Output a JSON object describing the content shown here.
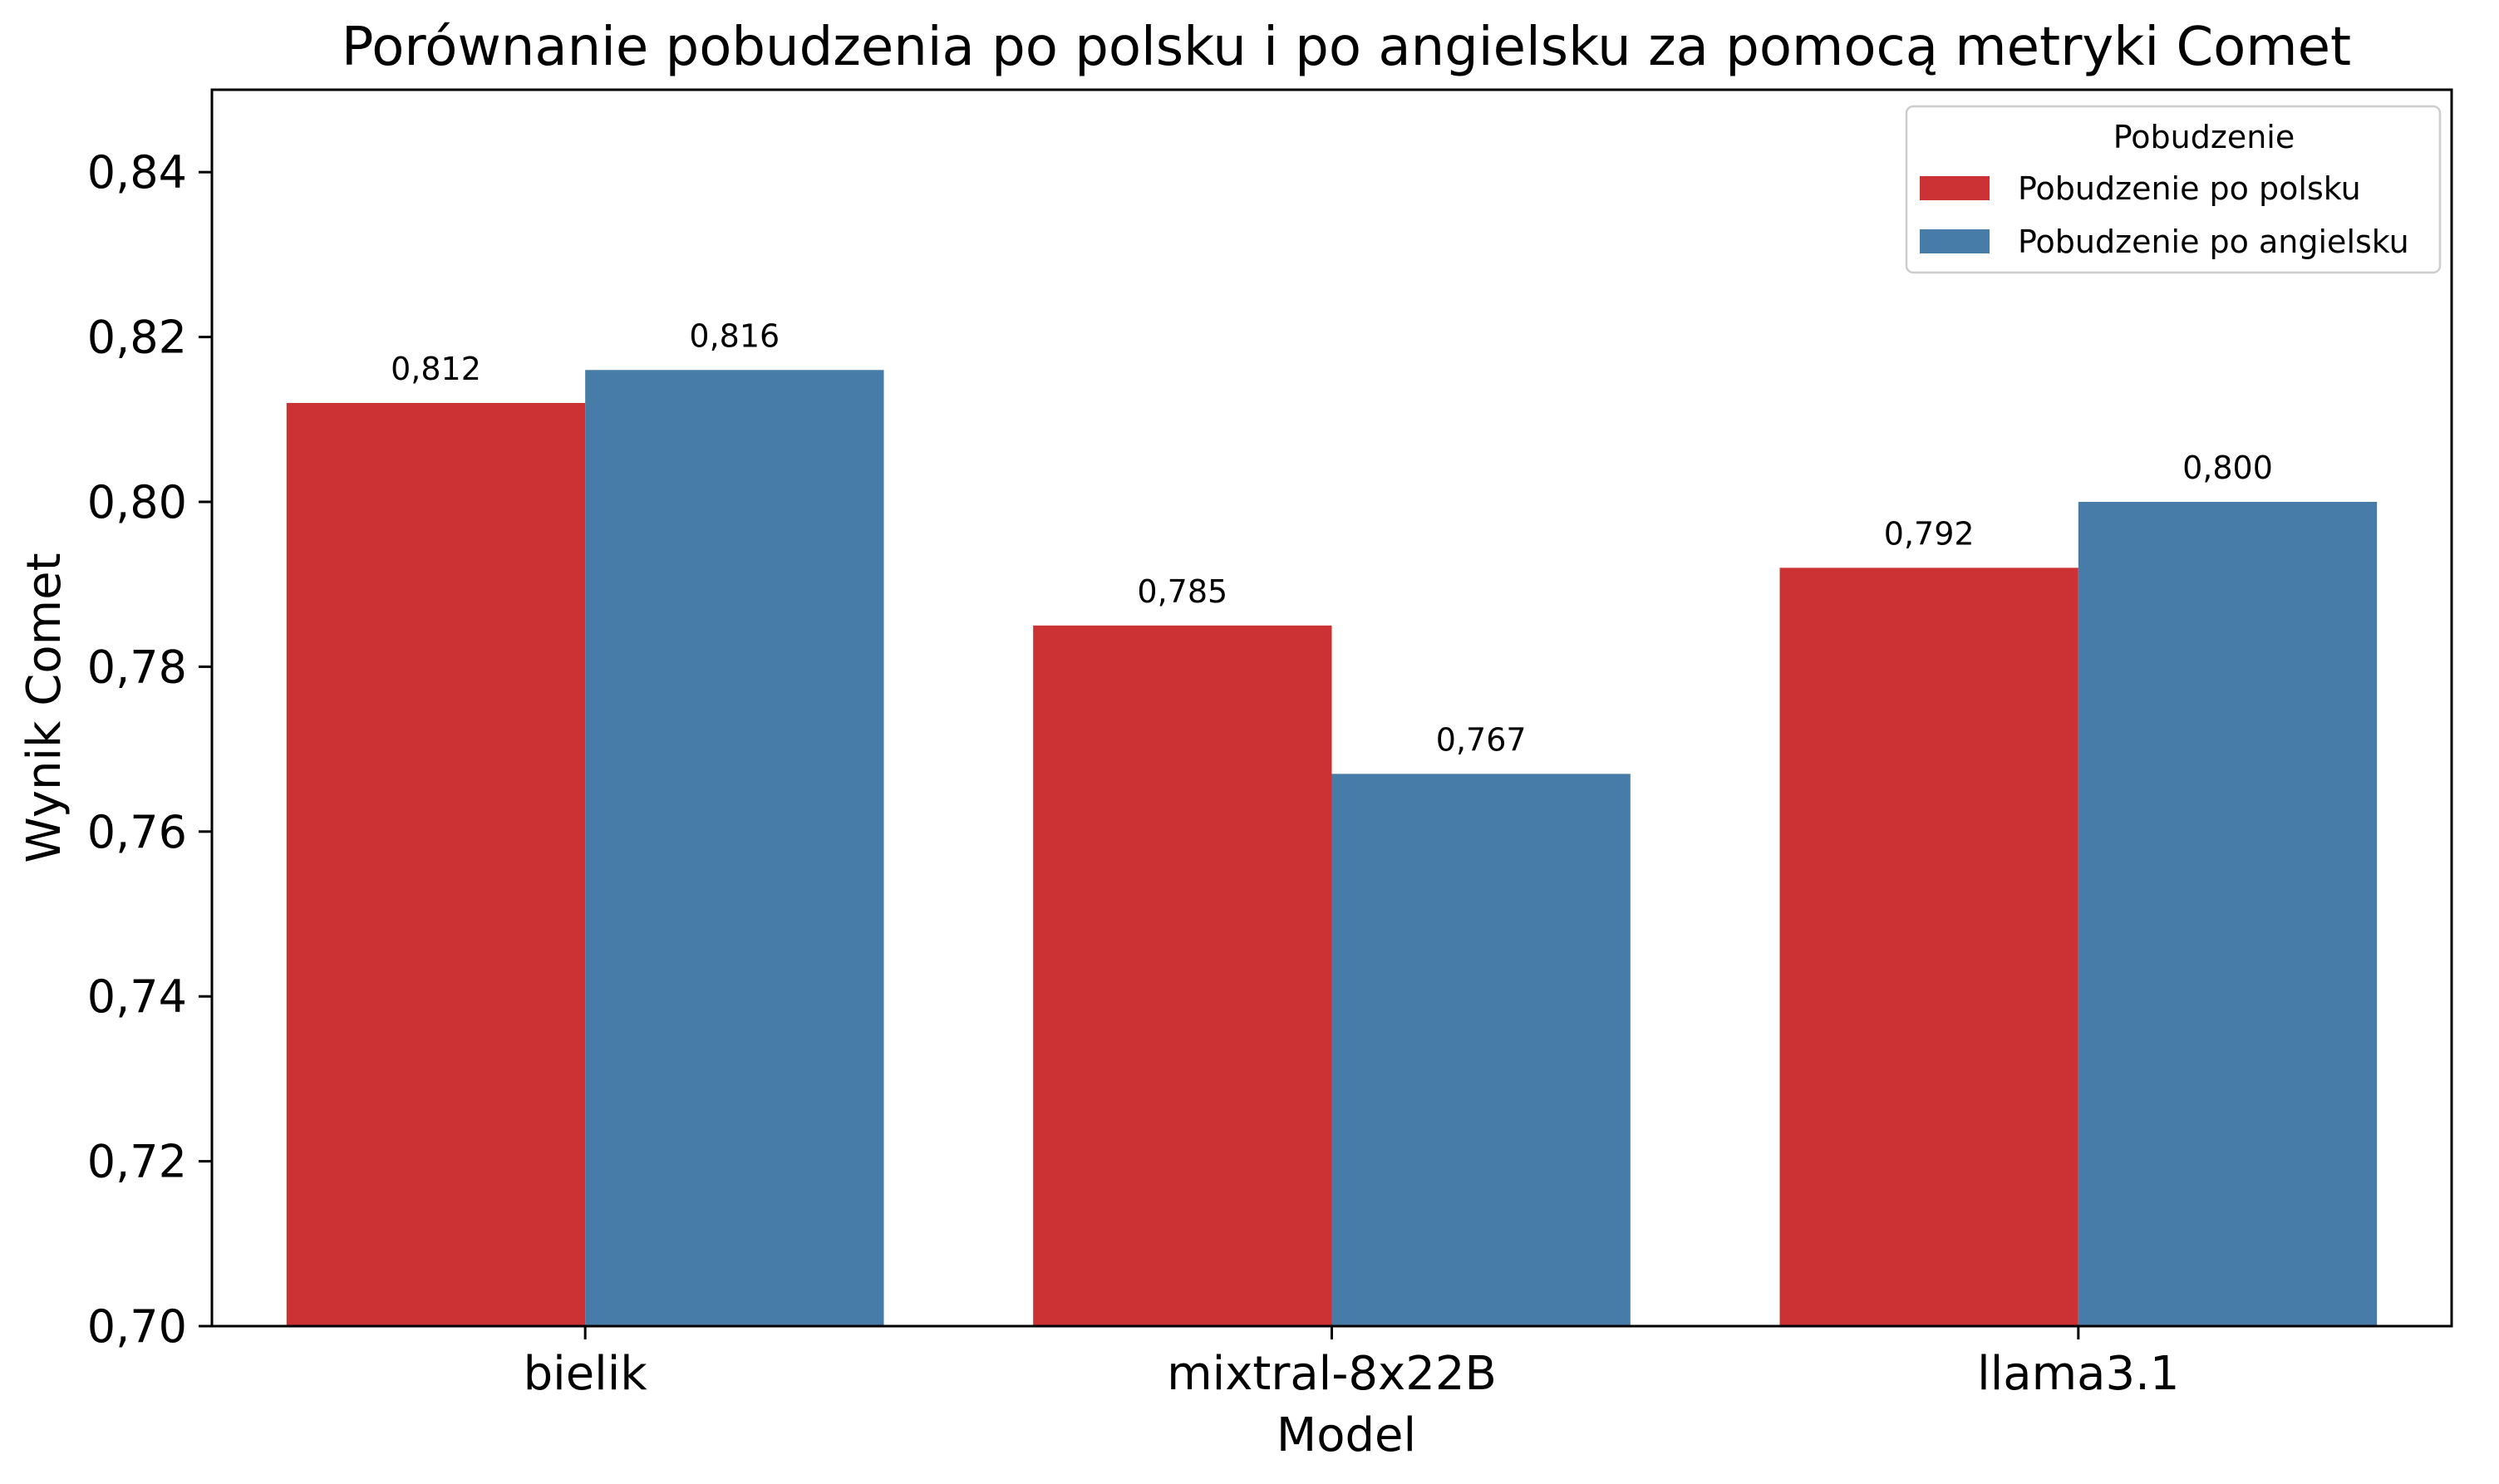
{
  "chart_data": {
    "type": "bar",
    "title": "Porównanie pobudzenia po polsku i po angielsku za pomocą metryki Comet",
    "xlabel": "Model",
    "ylabel": "Wynik Comet",
    "categories": [
      "bielik",
      "mixtral-8x22B",
      "llama3.1"
    ],
    "series": [
      {
        "name": "Pobudzenie po polsku",
        "color": "#cc3234",
        "values": [
          0.812,
          0.785,
          0.792
        ],
        "labels": [
          "0,812",
          "0,785",
          "0,792"
        ]
      },
      {
        "name": "Pobudzenie po angielsku",
        "color": "#477ca8",
        "values": [
          0.816,
          0.767,
          0.8
        ],
        "labels": [
          "0,816",
          "0,767",
          "0,800"
        ]
      }
    ],
    "ylim": [
      0.7,
      0.85
    ],
    "yticks": [
      0.7,
      0.72,
      0.74,
      0.76,
      0.78,
      0.8,
      0.82,
      0.84
    ],
    "ytick_labels": [
      "0,70",
      "0,72",
      "0,74",
      "0,76",
      "0,78",
      "0,80",
      "0,82",
      "0,84"
    ],
    "grid": false,
    "legend": {
      "title": "Pobudzenie",
      "placement": "top-right"
    }
  }
}
